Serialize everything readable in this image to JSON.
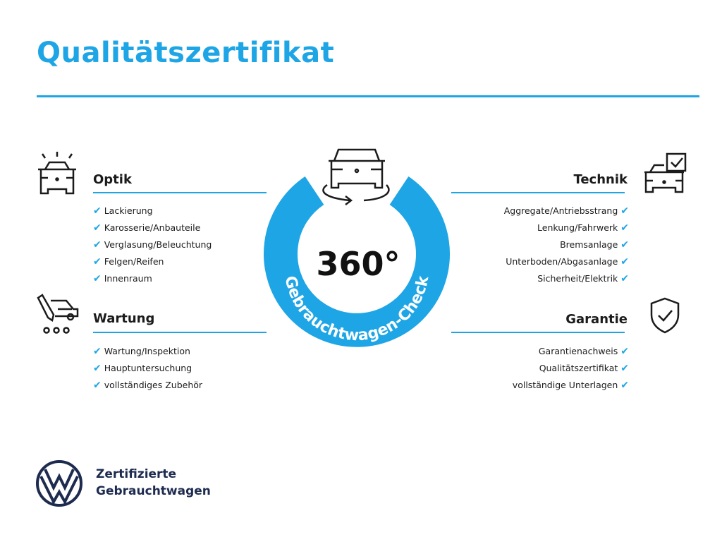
{
  "title": "Qualitätszertifikat",
  "center": {
    "number": "360°",
    "ring_text": "Gebrauchtwagen-Check"
  },
  "sections": {
    "optik": {
      "title": "Optik",
      "icon": "car-lights-icon",
      "items": [
        "Lackierung",
        "Karosserie/Anbauteile",
        "Verglasung/Beleuchtung",
        "Felgen/Reifen",
        "Innenraum"
      ]
    },
    "wartung": {
      "title": "Wartung",
      "icon": "service-car-icon",
      "items": [
        "Wartung/Inspektion",
        "Hauptuntersuchung",
        "vollständiges Zubehör"
      ]
    },
    "technik": {
      "title": "Technik",
      "icon": "car-checklist-icon",
      "items": [
        "Aggregate/Antriebsstrang",
        "Lenkung/Fahrwerk",
        "Bremsanlage",
        "Unterboden/Abgasanlage",
        "Sicherheit/Elektrik"
      ]
    },
    "garantie": {
      "title": "Garantie",
      "icon": "shield-check-icon",
      "items": [
        "Garantienachweis",
        "Qualitätszertifikat",
        "vollständige Unterlagen"
      ]
    }
  },
  "brand": {
    "line1": "Zertifizierte",
    "line2": "Gebrauchtwagen",
    "logo": "VW"
  },
  "colors": {
    "accent": "#1ea5e6",
    "brand_dark": "#1d2b4f"
  }
}
